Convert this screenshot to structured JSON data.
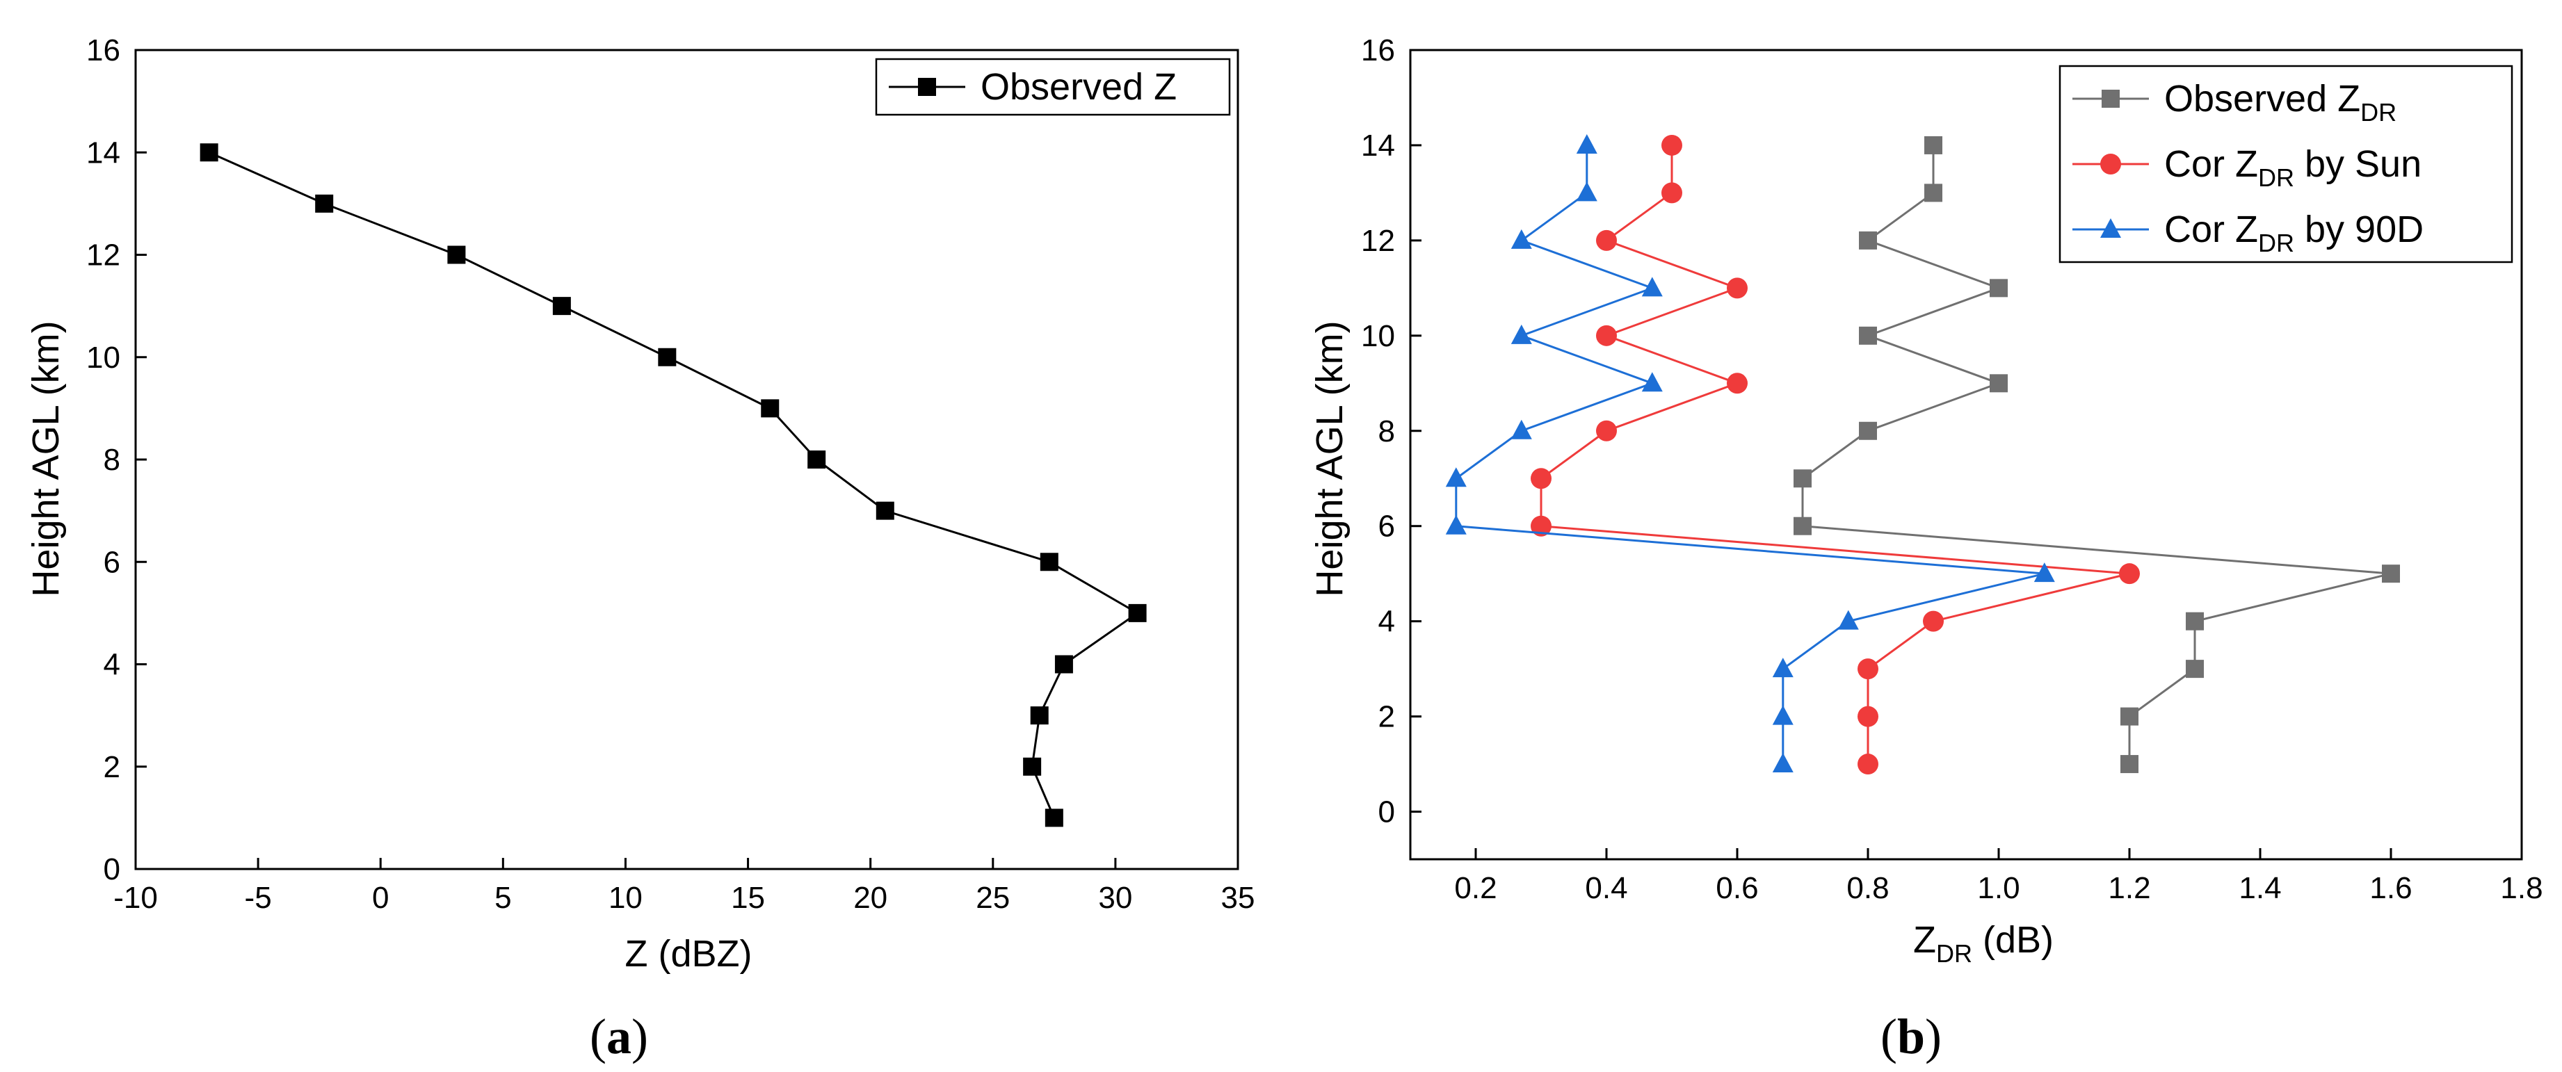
{
  "chart_data": [
    {
      "type": "line",
      "panel_label": "a",
      "xlabel": "Z (dBZ)",
      "ylabel": "Height AGL (km)",
      "xlim": [
        -10,
        35
      ],
      "ylim": [
        0,
        16
      ],
      "x_ticks": [
        -10,
        -5,
        0,
        5,
        10,
        15,
        20,
        25,
        30,
        35
      ],
      "y_ticks": [
        0,
        2,
        4,
        6,
        8,
        10,
        12,
        14,
        16
      ],
      "grid": false,
      "legend_position": "top-right",
      "series": [
        {
          "name": "Observed Z",
          "color": "#000000",
          "marker": "square",
          "x": [
            -7.0,
            -2.3,
            3.1,
            7.4,
            11.7,
            15.9,
            17.8,
            20.6,
            27.3,
            30.9,
            27.9,
            26.9,
            26.6,
            27.5
          ],
          "y": [
            14,
            13,
            12,
            11,
            10,
            9,
            8,
            7,
            6,
            5,
            4,
            3,
            2,
            1
          ]
        }
      ]
    },
    {
      "type": "line",
      "panel_label": "b",
      "xlabel": "Z",
      "xlabel_sub": "DR",
      "xlabel_unit": " (dB)",
      "ylabel": "Height AGL (km)",
      "xlim": [
        0.1,
        1.8
      ],
      "ylim": [
        -1,
        16
      ],
      "x_ticks": [
        0.2,
        0.4,
        0.6,
        0.8,
        1.0,
        1.2,
        1.4,
        1.6,
        1.8
      ],
      "x_tick_labels": [
        "0.2",
        "0.4",
        "0.6",
        "0.8",
        "1.0",
        "1.2",
        "1.4",
        "1.6",
        "1.8"
      ],
      "y_ticks": [
        0,
        2,
        4,
        6,
        8,
        10,
        12,
        14,
        16
      ],
      "grid": false,
      "legend_position": "top-right",
      "series": [
        {
          "name": "Observed Z",
          "name_sub": "DR",
          "name_suffix": "",
          "color": "#707070",
          "marker": "square",
          "x": [
            0.9,
            0.9,
            0.8,
            1.0,
            0.8,
            1.0,
            0.8,
            0.7,
            0.7,
            1.6,
            1.3,
            1.3,
            1.2,
            1.2
          ],
          "y": [
            14,
            13,
            12,
            11,
            10,
            9,
            8,
            7,
            6,
            5,
            4,
            3,
            2,
            1
          ]
        },
        {
          "name": "Cor Z",
          "name_sub": "DR",
          "name_suffix": " by Sun",
          "color": "#ef3b3b",
          "marker": "circle",
          "x": [
            0.5,
            0.5,
            0.4,
            0.6,
            0.4,
            0.6,
            0.4,
            0.3,
            0.3,
            1.2,
            0.9,
            0.8,
            0.8,
            0.8
          ],
          "y": [
            14,
            13,
            12,
            11,
            10,
            9,
            8,
            7,
            6,
            5,
            4,
            3,
            2,
            1
          ]
        },
        {
          "name": "Cor Z",
          "name_sub": "DR",
          "name_suffix": " by 90D",
          "color": "#1d6fd6",
          "marker": "triangle",
          "x": [
            0.37,
            0.37,
            0.27,
            0.47,
            0.27,
            0.47,
            0.27,
            0.17,
            0.17,
            1.07,
            0.77,
            0.67,
            0.67,
            0.67
          ],
          "y": [
            14,
            13,
            12,
            11,
            10,
            9,
            8,
            7,
            6,
            5,
            4,
            3,
            2,
            1
          ]
        }
      ]
    }
  ]
}
